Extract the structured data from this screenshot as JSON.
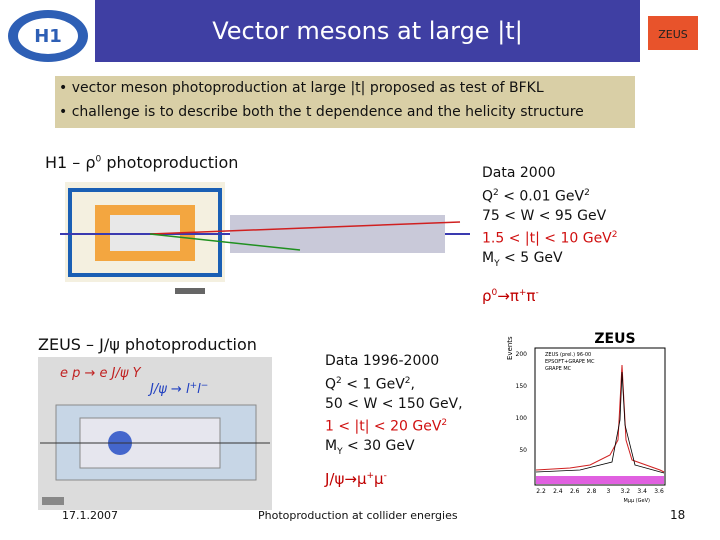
{
  "header": {
    "title": "Vector mesons at large |t|",
    "logo_right": "ZEUS"
  },
  "bullets": [
    "• vector meson photoproduction at large |t| proposed as test of BFKL",
    "• challenge is to describe both the t dependence and the helicity structure"
  ],
  "h1": {
    "heading": [
      "H1 – ρ",
      "0",
      " photoproduction"
    ],
    "data": [
      "Data 2000",
      [
        "Q",
        "2",
        " < 0.01 GeV",
        "2"
      ],
      "75 < W < 95 GeV",
      [
        "1.5 < |t| < 10 GeV",
        "2"
      ],
      [
        "M",
        "Y",
        " < 5 GeV"
      ]
    ],
    "decay": [
      "ρ",
      "0",
      "→π",
      "+",
      "π",
      "-"
    ]
  },
  "zeus": {
    "heading": "ZEUS – J/ψ photoproduction",
    "data": [
      "Data 1996-2000",
      [
        "Q",
        "2",
        " < 1 GeV",
        "2",
        ","
      ],
      "50 < W < 150 GeV,",
      [
        "1 < |t| < 20 GeV",
        "2"
      ],
      [
        "M",
        "Y",
        " < 30 GeV"
      ]
    ],
    "decay": [
      "J/ψ→μ",
      "+",
      "μ",
      "-"
    ],
    "diagram_text": [
      "e p → e J/ψ Y",
      "J/ψ → l",
      "+",
      "l",
      "−"
    ],
    "plot": {
      "title": "ZEUS",
      "y_label": "Events",
      "yticks": [
        "200",
        "150",
        "100",
        "50"
      ],
      "legend": [
        "ZEUS (prel.) 96-00",
        "EPSOFT+GRAPE MC",
        "GRAPE MC"
      ],
      "xticks": [
        "2.2",
        "2.4",
        "2.6",
        "2.8",
        "3",
        "3.2",
        "3.4",
        "3.6"
      ],
      "x_label": "Mμμ (GeV)"
    }
  },
  "footer": {
    "date": "17.1.2007",
    "text": "Photoproduction at collider energies",
    "page": "18"
  }
}
